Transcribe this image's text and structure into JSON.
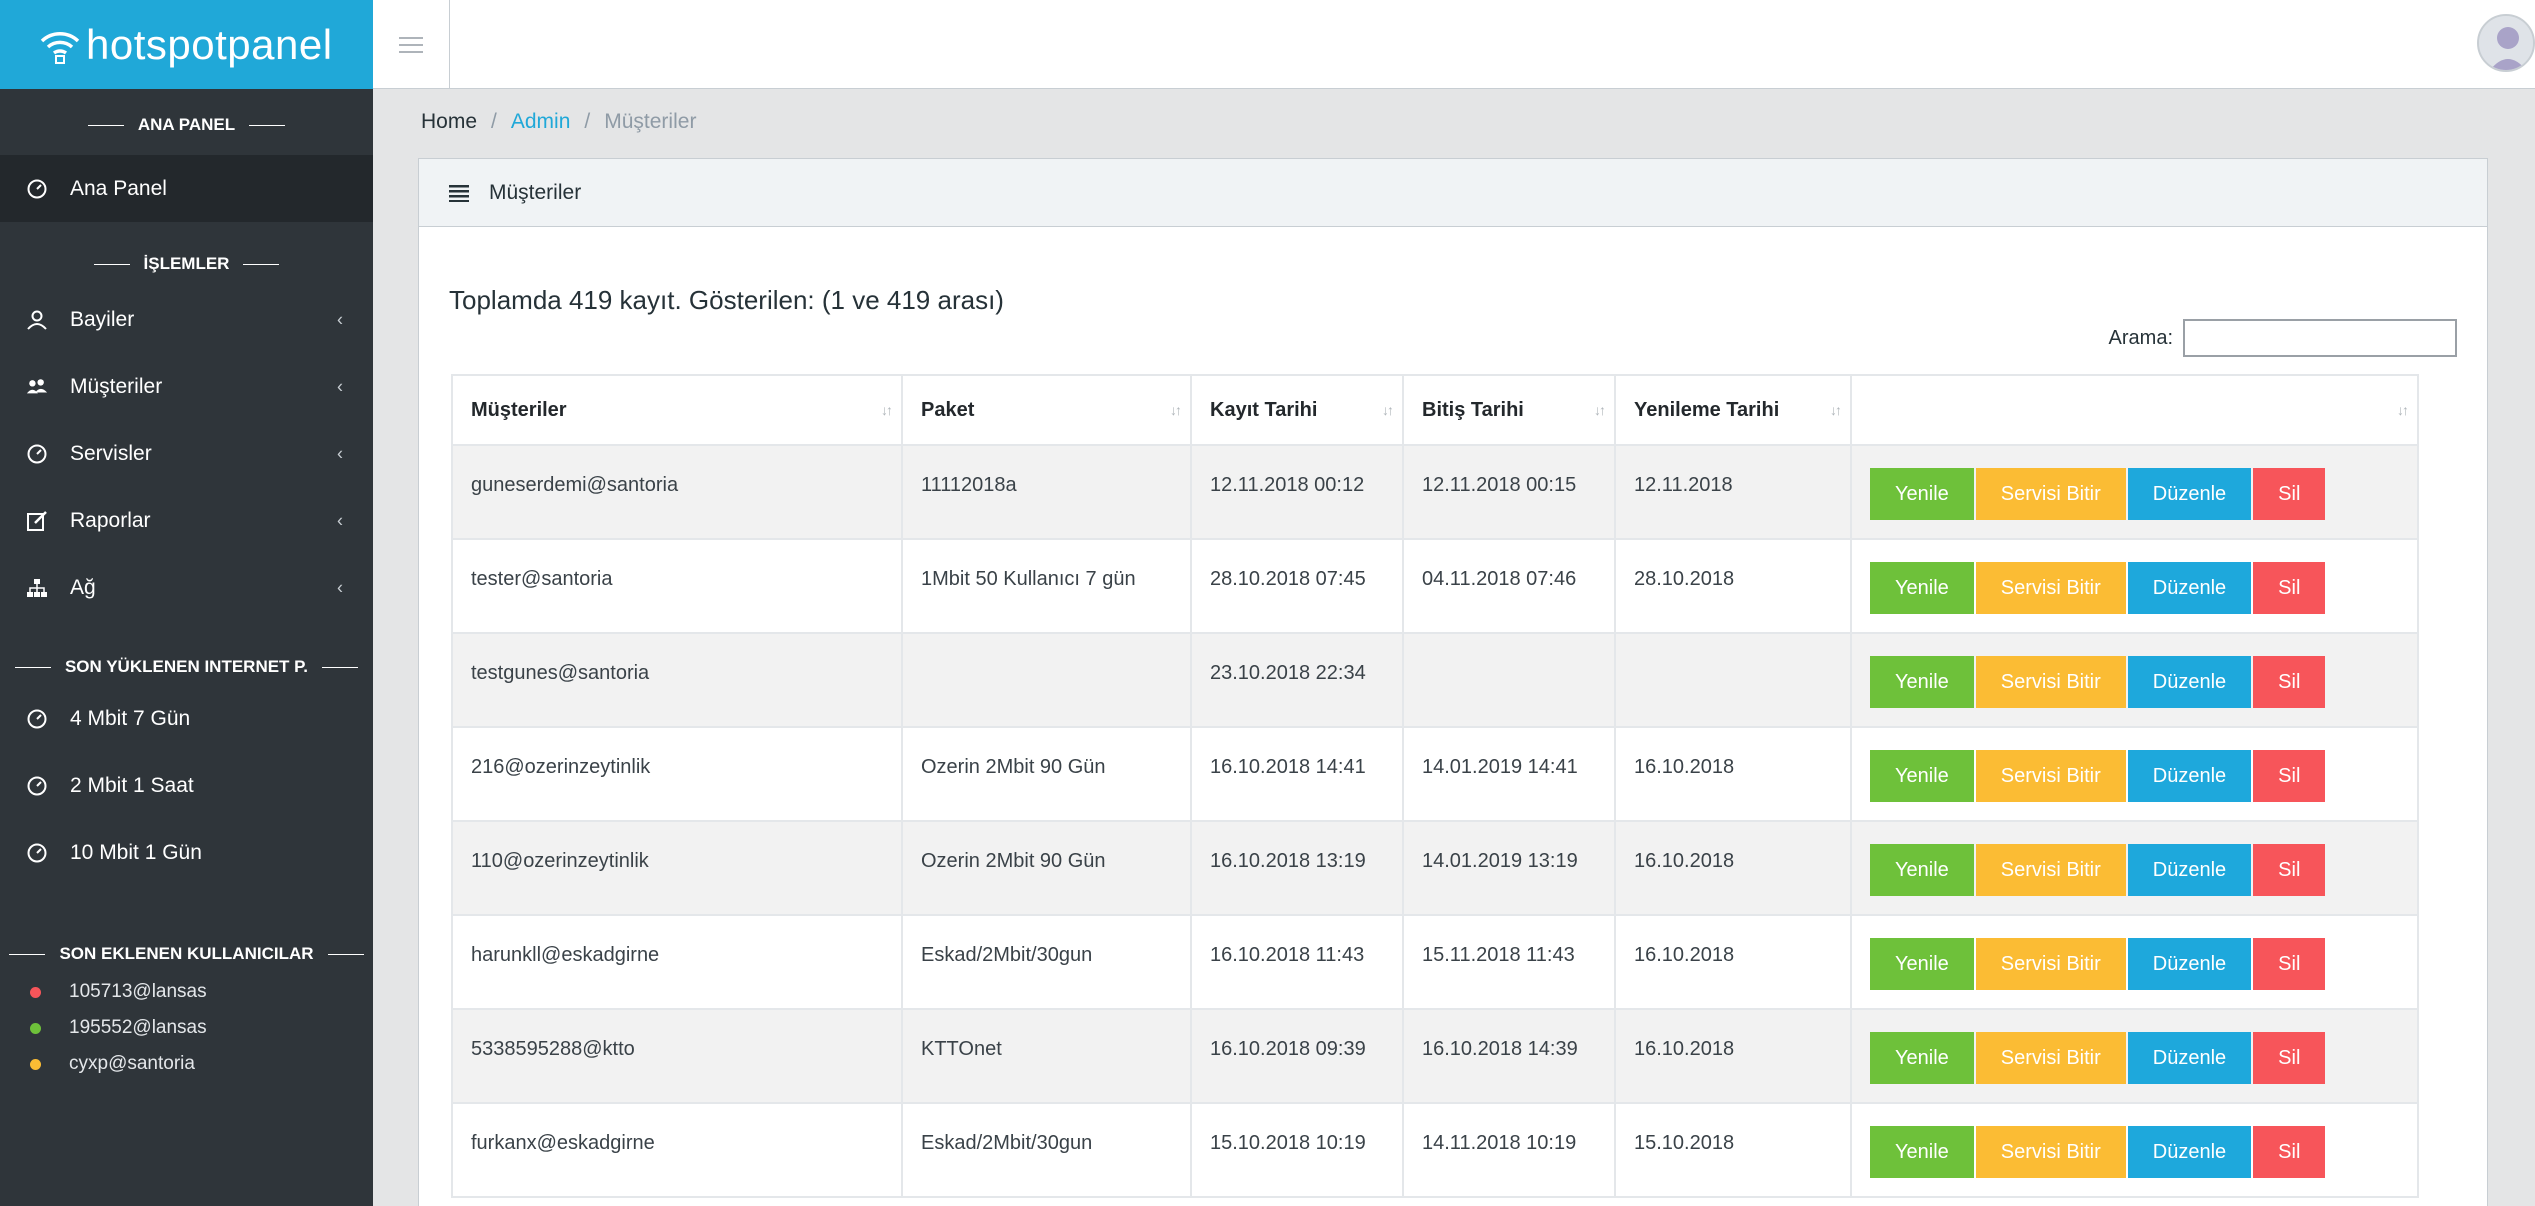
{
  "brand": {
    "name": "hotspotpanel",
    "color": "#20a8d8"
  },
  "sidebar": {
    "sections": {
      "main": "ANA PANEL",
      "operations": "İŞLEMLER",
      "recent_packages": "SON YÜKLENEN INTERNET P.",
      "recent_users": "SON EKLENEN KULLANICILAR"
    },
    "dashboard": {
      "label": "Ana Panel",
      "icon": "speedometer-icon"
    },
    "items": [
      {
        "label": "Bayiler",
        "icon": "user-icon"
      },
      {
        "label": "Müşteriler",
        "icon": "users-icon"
      },
      {
        "label": "Servisler",
        "icon": "speedometer-icon"
      },
      {
        "label": "Raporlar",
        "icon": "edit-icon"
      },
      {
        "label": "Ağ",
        "icon": "sitemap-icon"
      }
    ],
    "packages": [
      {
        "label": "4 Mbit 7 Gün",
        "icon": "speedometer-icon"
      },
      {
        "label": "2 Mbit 1 Saat",
        "icon": "speedometer-icon"
      },
      {
        "label": "10 Mbit 1 Gün",
        "icon": "speedometer-icon"
      }
    ],
    "users": [
      {
        "label": "105713@lansas",
        "color": "#f7555a"
      },
      {
        "label": "195552@lansas",
        "color": "#6ec13a"
      },
      {
        "label": "cyxp@santoria",
        "color": "#fbbc34"
      }
    ]
  },
  "breadcrumb": {
    "home": "Home",
    "admin": "Admin",
    "current": "Müşteriler"
  },
  "card": {
    "title": "Müşteriler",
    "summary": "Toplamda 419 kayıt. Gösterilen: (1 ve 419 arası)",
    "search_label": "Arama:",
    "search_value": ""
  },
  "table": {
    "headers": [
      "Müşteriler",
      "Paket",
      "Kayıt Tarihi",
      "Bitiş Tarihi",
      "Yenileme Tarihi",
      ""
    ],
    "buttons": {
      "renew": "Yenile",
      "end": "Servisi Bitir",
      "edit": "Düzenle",
      "delete": "Sil"
    },
    "rows": [
      {
        "customer": "guneserdemi@santoria",
        "package": "11112018a",
        "registered": "12.11.2018 00:12",
        "expires": "12.11.2018 00:15",
        "renewed": "12.11.2018"
      },
      {
        "customer": "tester@santoria",
        "package": "1Mbit 50 Kullanıcı 7 gün",
        "registered": "28.10.2018 07:45",
        "expires": "04.11.2018 07:46",
        "renewed": "28.10.2018"
      },
      {
        "customer": "testgunes@santoria",
        "package": "",
        "registered": "23.10.2018 22:34",
        "expires": "",
        "renewed": ""
      },
      {
        "customer": "216@ozerinzeytinlik",
        "package": "Ozerin 2Mbit 90 Gün",
        "registered": "16.10.2018 14:41",
        "expires": "14.01.2019 14:41",
        "renewed": "16.10.2018"
      },
      {
        "customer": "110@ozerinzeytinlik",
        "package": "Ozerin 2Mbit 90 Gün",
        "registered": "16.10.2018 13:19",
        "expires": "14.01.2019 13:19",
        "renewed": "16.10.2018"
      },
      {
        "customer": "harunkll@eskadgirne",
        "package": "Eskad/2Mbit/30gun",
        "registered": "16.10.2018 11:43",
        "expires": "15.11.2018 11:43",
        "renewed": "16.10.2018"
      },
      {
        "customer": "5338595288@ktto",
        "package": "KTTOnet",
        "registered": "16.10.2018 09:39",
        "expires": "16.10.2018 14:39",
        "renewed": "16.10.2018"
      },
      {
        "customer": "furkanx@eskadgirne",
        "package": "Eskad/2Mbit/30gun",
        "registered": "15.10.2018 10:19",
        "expires": "14.11.2018 10:19",
        "renewed": "15.10.2018"
      }
    ]
  }
}
